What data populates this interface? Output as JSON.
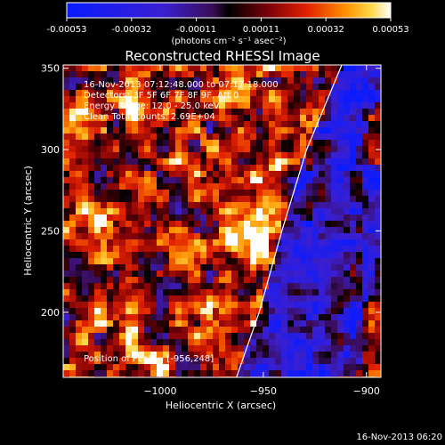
{
  "chart_data": {
    "type": "heatmap",
    "title": "Reconstructed RHESSI Image",
    "colorbar": {
      "ticks": [
        "-0.00053",
        "-0.00032",
        "-0.00011",
        "0.00011",
        "0.00032",
        "0.00053"
      ],
      "units": "(photons cm⁻² s⁻¹ asec⁻²)",
      "range": [
        -0.00053,
        0.00053
      ]
    },
    "xlabel": "Heliocentric X (arcsec)",
    "ylabel": "Heliocentric Y (arcsec)",
    "xlim": [
      -1047,
      -893
    ],
    "ylim": [
      160,
      352
    ],
    "xticks": [
      -1000,
      -950,
      -900
    ],
    "xtick_labels": [
      "−1000",
      "−950",
      "−900"
    ],
    "yticks": [
      200,
      250,
      300,
      350
    ],
    "ytick_labels": [
      "200",
      "250",
      "300",
      "350"
    ],
    "annotations": [
      "16-Nov-2013 07:12:48.000 to 07:17:18.000",
      "Detectors: 3F 5F 6F 7F 8F 9F, Att 0",
      "Energy Range: 12.0 - 25.0 keV",
      "Clean     Total counts: 2.69E+04"
    ],
    "peak_text": "Position of Peak = [-956,248]",
    "peak": [
      -956,
      248
    ],
    "limb_curve": [
      [
        -963,
        160
      ],
      [
        -952,
        200
      ],
      [
        -941,
        250
      ],
      [
        -929,
        300
      ],
      [
        -912,
        352
      ]
    ],
    "grid": false
  },
  "footer_timestamp": "16-Nov-2013 06:20"
}
